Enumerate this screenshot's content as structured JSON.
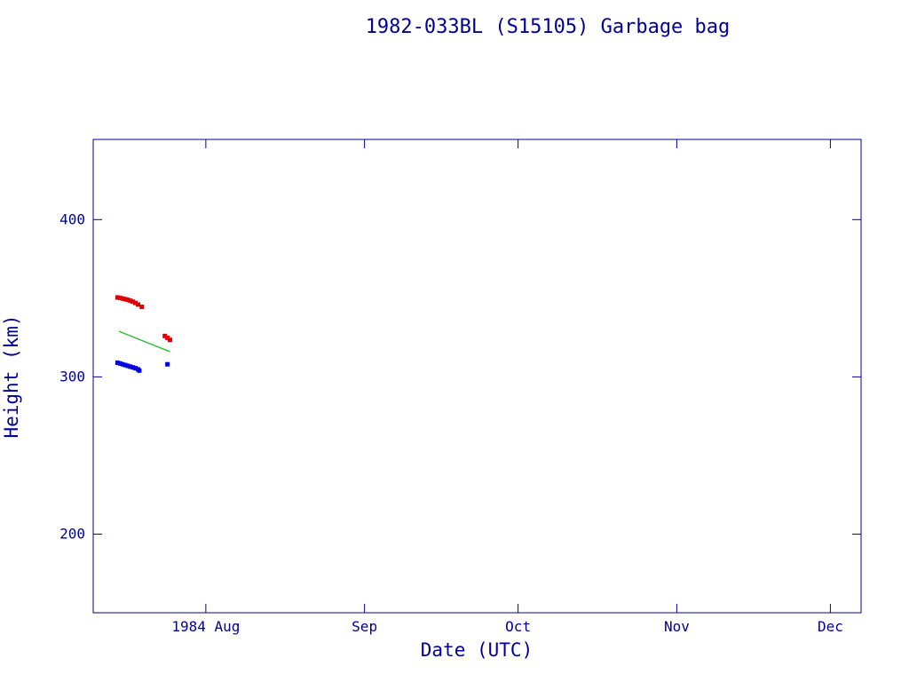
{
  "page": {
    "background": "#ffffff"
  },
  "chart_data": {
    "type": "scatter",
    "title": "1982-033BL (S15105) Garbage bag",
    "xlabel": "Date (UTC)",
    "ylabel": "Height (km)",
    "axis_color": "#000099",
    "grid": false,
    "legend": "none",
    "x_domain": [
      "1984-07-10",
      "1984-12-07"
    ],
    "ylim": [
      150,
      451
    ],
    "y_ticks": [
      200,
      300,
      400
    ],
    "x_ticks": [
      {
        "date": "1984-08-01",
        "label": "1984 Aug"
      },
      {
        "date": "1984-09-01",
        "label": "Sep"
      },
      {
        "date": "1984-10-01",
        "label": "Oct"
      },
      {
        "date": "1984-11-01",
        "label": "Nov"
      },
      {
        "date": "1984-12-01",
        "label": "Dec"
      }
    ],
    "series": [
      {
        "name": "apogee-height",
        "type": "scatter",
        "marker": "square",
        "color": "#dd0000",
        "points": [
          [
            "1984-07-14T18:00",
            350.5
          ],
          [
            "1984-07-15T06:00",
            350.2
          ],
          [
            "1984-07-15T18:00",
            349.8
          ],
          [
            "1984-07-16T06:00",
            349.4
          ],
          [
            "1984-07-16T18:00",
            349.0
          ],
          [
            "1984-07-17T06:00",
            348.4
          ],
          [
            "1984-07-17T18:00",
            347.8
          ],
          [
            "1984-07-18T06:00",
            347.0
          ],
          [
            "1984-07-18T18:00",
            346.0
          ],
          [
            "1984-07-19T12:00",
            344.5
          ],
          [
            "1984-07-24T00:00",
            326.0
          ],
          [
            "1984-07-24T12:00",
            324.8
          ],
          [
            "1984-07-25T00:00",
            323.5
          ]
        ]
      },
      {
        "name": "perigee-height",
        "type": "scatter",
        "marker": "square",
        "color": "#0000dd",
        "points": [
          [
            "1984-07-14T18:00",
            309.0
          ],
          [
            "1984-07-15T06:00",
            308.5
          ],
          [
            "1984-07-15T18:00",
            308.0
          ],
          [
            "1984-07-16T06:00",
            307.5
          ],
          [
            "1984-07-16T18:00",
            307.0
          ],
          [
            "1984-07-17T06:00",
            306.5
          ],
          [
            "1984-07-17T18:00",
            306.0
          ],
          [
            "1984-07-18T06:00",
            305.5
          ],
          [
            "1984-07-18T18:00",
            304.8
          ],
          [
            "1984-07-19T00:00",
            304.0
          ],
          [
            "1984-07-24T12:00",
            308.0
          ]
        ]
      },
      {
        "name": "mean-height",
        "type": "line",
        "color": "#33bb33",
        "points": [
          [
            "1984-07-15T00:00",
            329.0
          ],
          [
            "1984-07-25T00:00",
            316.0
          ]
        ]
      }
    ]
  }
}
